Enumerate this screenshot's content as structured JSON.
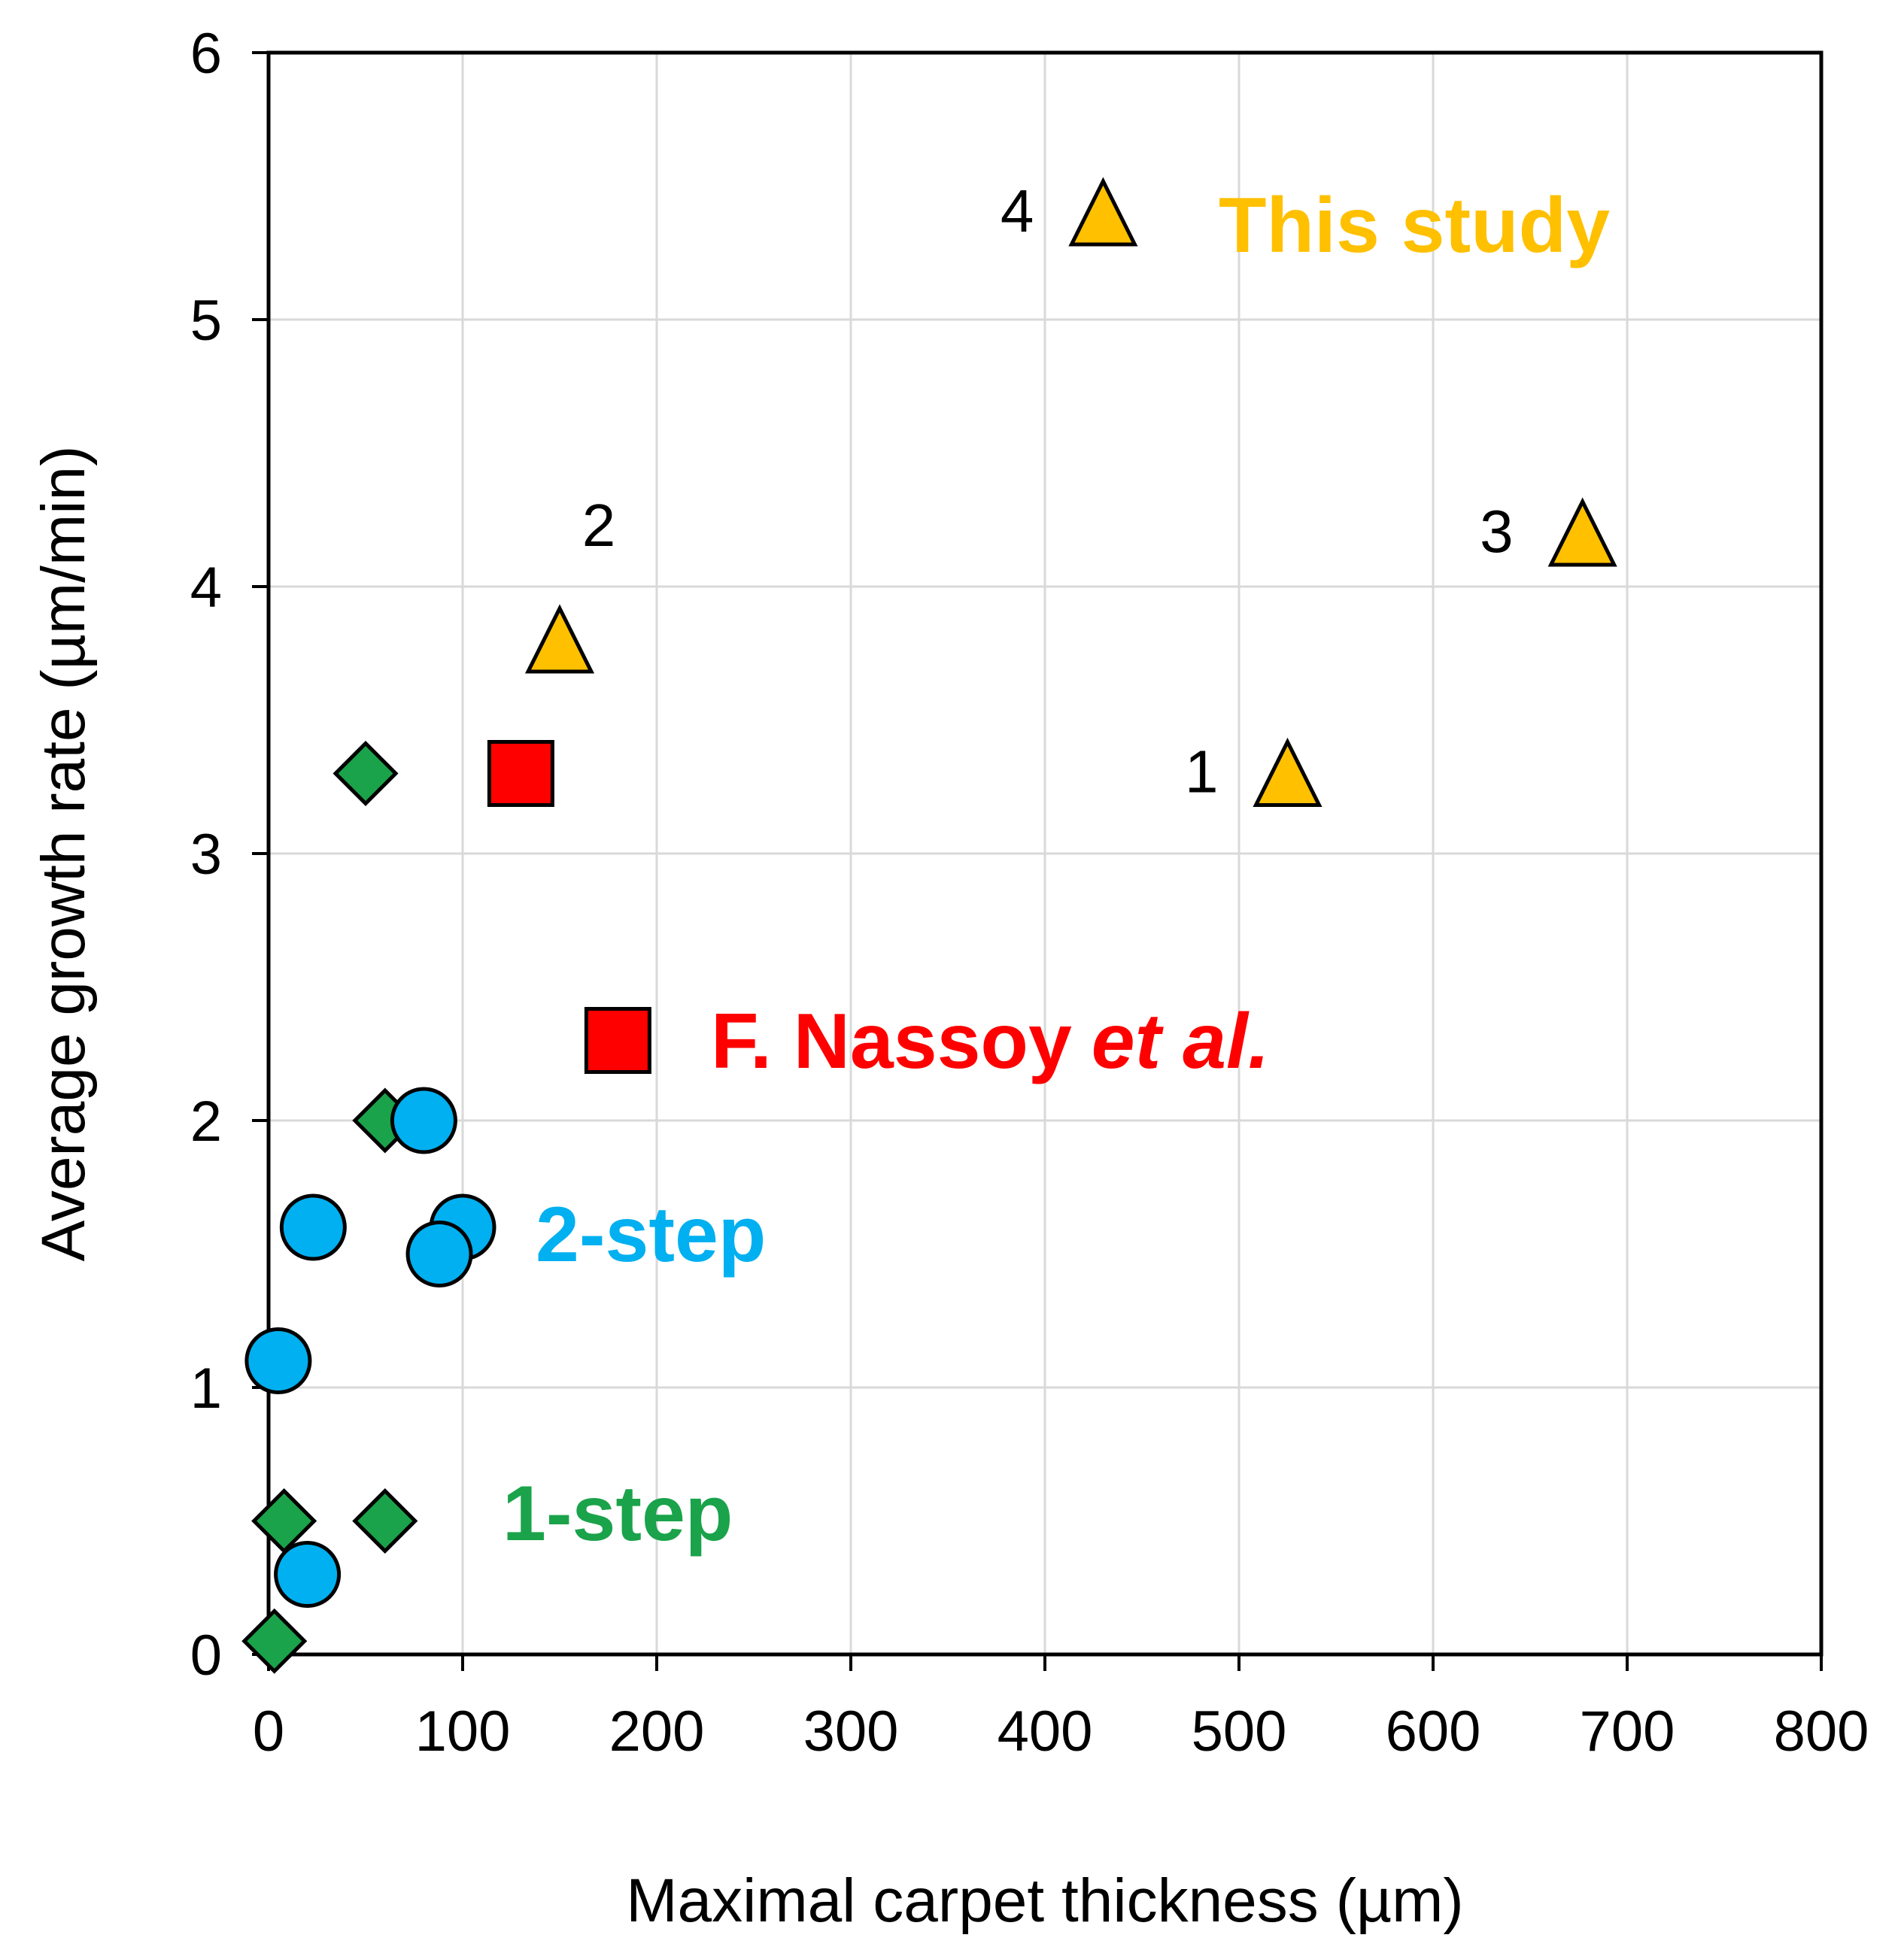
{
  "chart_data": {
    "type": "scatter",
    "title": "",
    "xlabel": "Maximal carpet thickness (µm)",
    "ylabel": "Average growth rate (µm/min)",
    "xlim": [
      0,
      800
    ],
    "ylim": [
      0,
      6
    ],
    "xticks": [
      "0",
      "100",
      "200",
      "300",
      "400",
      "500",
      "600",
      "700",
      "800"
    ],
    "yticks": [
      "0",
      "1",
      "2",
      "3",
      "4",
      "5",
      "6"
    ],
    "grid": true,
    "series": [
      {
        "name": "1-step",
        "marker": "diamond",
        "color": "#1aa34a",
        "points": [
          {
            "x": 50,
            "y": 3.3
          },
          {
            "x": 60,
            "y": 2.0
          },
          {
            "x": 8,
            "y": 0.5
          },
          {
            "x": 60,
            "y": 0.5
          },
          {
            "x": 3,
            "y": 0.05
          }
        ]
      },
      {
        "name": "2-step",
        "marker": "circle",
        "color": "#00b0f0",
        "points": [
          {
            "x": 80,
            "y": 2.0
          },
          {
            "x": 23,
            "y": 1.6
          },
          {
            "x": 100,
            "y": 1.6
          },
          {
            "x": 88,
            "y": 1.5
          },
          {
            "x": 5,
            "y": 1.1
          },
          {
            "x": 20,
            "y": 0.3
          }
        ]
      },
      {
        "name": "F. Nassoy et al.",
        "marker": "square",
        "color": "#ff0000",
        "points": [
          {
            "x": 130,
            "y": 3.3
          },
          {
            "x": 180,
            "y": 2.3
          }
        ]
      },
      {
        "name": "This study",
        "marker": "triangle",
        "color": "#ffc000",
        "points": [
          {
            "x": 525,
            "y": 3.3,
            "label": "1"
          },
          {
            "x": 150,
            "y": 3.8,
            "label": "2"
          },
          {
            "x": 677,
            "y": 4.2,
            "label": "3"
          },
          {
            "x": 430,
            "y": 5.4,
            "label": "4"
          }
        ]
      }
    ],
    "annotations": {
      "this_study_prefix": "This study",
      "nassoy_name": "F. Nassoy",
      "nassoy_suffix": "et al.",
      "two_step": "2-step",
      "one_step": "1-step"
    }
  }
}
